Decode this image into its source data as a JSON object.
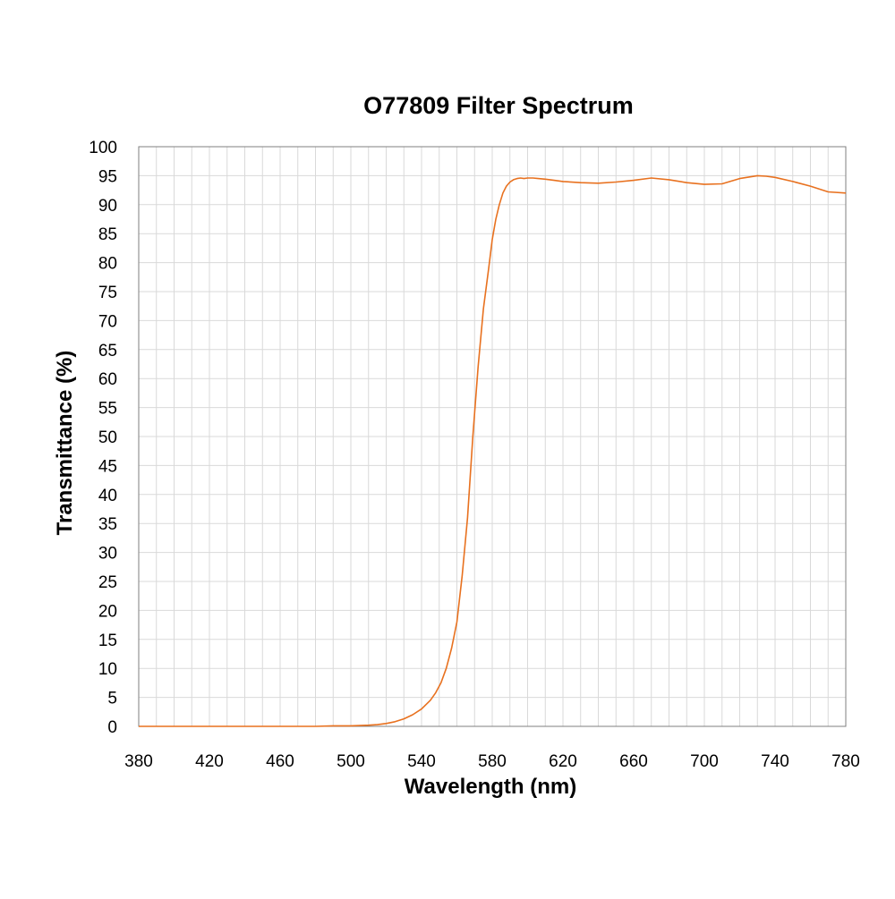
{
  "chart_data": {
    "type": "line",
    "title": "O77809 Filter Spectrum",
    "xlabel": "Wavelength (nm)",
    "ylabel": "Transmittance (%)",
    "xlim": [
      380,
      780
    ],
    "ylim": [
      0,
      100
    ],
    "xticks": [
      380,
      420,
      460,
      500,
      540,
      580,
      620,
      660,
      700,
      740,
      780
    ],
    "yticks": [
      0,
      5,
      10,
      15,
      20,
      25,
      30,
      35,
      40,
      45,
      50,
      55,
      60,
      65,
      70,
      75,
      80,
      85,
      90,
      95,
      100
    ],
    "grid": true,
    "minor_grid_x_step": 10,
    "legend": "none",
    "series_color": "#E8711F",
    "series": [
      {
        "x": [
          380,
          400,
          420,
          440,
          460,
          480,
          490,
          500,
          510,
          515,
          520,
          525,
          530,
          535,
          540,
          545,
          548,
          551,
          554,
          557,
          560,
          563,
          566,
          569,
          572,
          575,
          578,
          580,
          582,
          584,
          586,
          588,
          590,
          592,
          594,
          596,
          598,
          600,
          603,
          606,
          610,
          615,
          620,
          630,
          640,
          650,
          660,
          670,
          680,
          690,
          700,
          710,
          720,
          730,
          735,
          740,
          750,
          760,
          770,
          780
        ],
        "y": [
          0,
          0,
          0,
          0,
          0,
          0,
          0.1,
          0.1,
          0.2,
          0.3,
          0.5,
          0.8,
          1.3,
          2.0,
          3.0,
          4.5,
          5.8,
          7.5,
          10.0,
          13.5,
          18.0,
          26.0,
          36.0,
          50.0,
          62.0,
          72.0,
          79.0,
          84.0,
          87.5,
          90.0,
          92.0,
          93.2,
          93.9,
          94.3,
          94.5,
          94.6,
          94.5,
          94.6,
          94.6,
          94.5,
          94.4,
          94.2,
          94.0,
          93.8,
          93.7,
          93.9,
          94.2,
          94.6,
          94.3,
          93.8,
          93.5,
          93.6,
          94.5,
          95.0,
          94.9,
          94.7,
          94.0,
          93.2,
          92.2,
          92.0
        ]
      }
    ]
  }
}
